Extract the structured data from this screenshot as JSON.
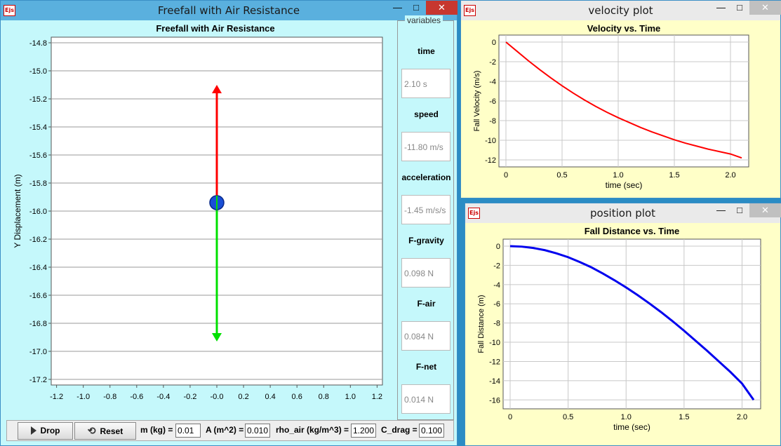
{
  "main_window": {
    "title": "Freefall with Air Resistance",
    "icon": "Ejs",
    "minimize": "—",
    "maximize": "□",
    "close": "✕",
    "plot_title": "Freefall with Air Resistance",
    "y_label": "Y Displacement (m)",
    "y_ticks": [
      "-14.8",
      "-15.0",
      "-15.2",
      "-15.4",
      "-15.6",
      "-15.8",
      "-16.0",
      "-16.2",
      "-16.4",
      "-16.6",
      "-16.8",
      "-17.0",
      "-17.2"
    ],
    "x_ticks": [
      "-1.2",
      "-1.0",
      "-0.8",
      "-0.6",
      "-0.4",
      "-0.2",
      "-0.0",
      "0.2",
      "0.4",
      "0.6",
      "0.8",
      "1.0",
      "1.2"
    ],
    "ball_y": -15.94,
    "red_arrow_tip": -15.1,
    "green_arrow_tip": -16.93,
    "colors": {
      "background": "#c5f8fb",
      "air_force": "#ff0000",
      "gravity_force": "#00e000",
      "ball": "#1a4fd6"
    }
  },
  "variables": {
    "legend": "variables",
    "items": [
      {
        "label": "time",
        "value": "2.10 s"
      },
      {
        "label": "speed",
        "value": "-11.80 m/s"
      },
      {
        "label": "acceleration",
        "value": "-1.45 m/s/s"
      },
      {
        "label": "F-gravity",
        "value": "0.098 N"
      },
      {
        "label": "F-air",
        "value": "0.084 N"
      },
      {
        "label": "F-net",
        "value": "0.014 N"
      }
    ]
  },
  "controls": {
    "drop_label": "Drop",
    "reset_label": "Reset",
    "m_label": "m (kg) =",
    "m_value": "0.01",
    "a_label": "A (m^2) =",
    "a_value": "0.010",
    "rho_label": "rho_air (kg/m^3) =",
    "rho_value": "1.200",
    "cdrag_label": "C_drag =",
    "cdrag_value": "0.100"
  },
  "velocity_window": {
    "title": "velocity plot",
    "icon": "Ejs",
    "minimize": "—",
    "maximize": "□",
    "close": "✕"
  },
  "position_window": {
    "title": "position plot",
    "icon": "Ejs",
    "minimize": "—",
    "maximize": "□",
    "close": "✕"
  },
  "chart_data": [
    {
      "type": "line",
      "title": "Velocity vs. Time",
      "xlabel": "time (sec)",
      "ylabel": "Fall Velocity (m/s)",
      "xlim": [
        0,
        2.1
      ],
      "ylim": [
        -12,
        0
      ],
      "x_ticks": [
        "0",
        "0.5",
        "1.0",
        "1.5",
        "2.0"
      ],
      "y_ticks": [
        "0",
        "-2",
        "-4",
        "-6",
        "-8",
        "-10",
        "-12"
      ],
      "series": [
        {
          "color": "#ff0000",
          "x": [
            0,
            0.1,
            0.2,
            0.3,
            0.4,
            0.5,
            0.6,
            0.7,
            0.8,
            0.9,
            1.0,
            1.1,
            1.2,
            1.3,
            1.4,
            1.5,
            1.6,
            1.7,
            1.8,
            1.9,
            2.0,
            2.1
          ],
          "y": [
            0,
            -0.95,
            -1.9,
            -2.8,
            -3.65,
            -4.45,
            -5.2,
            -5.9,
            -6.55,
            -7.15,
            -7.7,
            -8.2,
            -8.7,
            -9.15,
            -9.55,
            -9.95,
            -10.3,
            -10.6,
            -10.9,
            -11.15,
            -11.4,
            -11.8
          ]
        }
      ],
      "grid": true
    },
    {
      "type": "line",
      "title": "Fall Distance vs. Time",
      "xlabel": "time (sec)",
      "ylabel": "Fall Distance (m)",
      "xlim": [
        0,
        2.1
      ],
      "ylim": [
        -16.2,
        0
      ],
      "x_ticks": [
        "0",
        "0.5",
        "1.0",
        "1.5",
        "2.0"
      ],
      "y_ticks": [
        "0",
        "-2",
        "-4",
        "-6",
        "-8",
        "-10",
        "-12",
        "-14",
        "-16"
      ],
      "series": [
        {
          "color": "#0000ee",
          "x": [
            0,
            0.1,
            0.2,
            0.3,
            0.4,
            0.5,
            0.6,
            0.7,
            0.8,
            0.9,
            1.0,
            1.1,
            1.2,
            1.3,
            1.4,
            1.5,
            1.6,
            1.7,
            1.8,
            1.9,
            2.0,
            2.1
          ],
          "y": [
            0,
            -0.05,
            -0.19,
            -0.42,
            -0.75,
            -1.15,
            -1.65,
            -2.2,
            -2.85,
            -3.55,
            -4.3,
            -5.1,
            -5.95,
            -6.85,
            -7.8,
            -8.8,
            -9.85,
            -10.9,
            -12.0,
            -13.1,
            -14.3,
            -16.0
          ]
        }
      ],
      "grid": true
    }
  ]
}
